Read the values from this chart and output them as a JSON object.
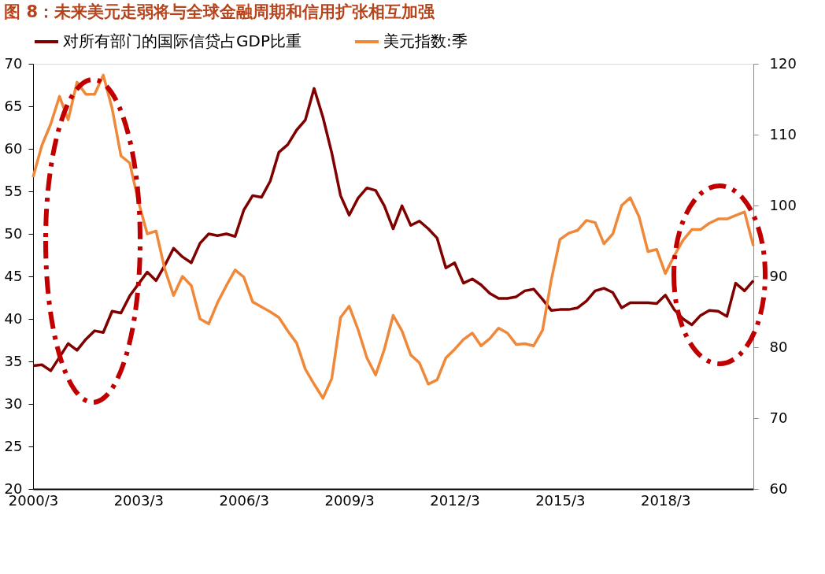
{
  "chart_data": {
    "type": "line",
    "title": "图 8：未来美元走弱将与全球金融周期和信用扩张相互加强",
    "x": [
      "2000-03",
      "2000-06",
      "2000-09",
      "2000-12",
      "2001-03",
      "2001-06",
      "2001-09",
      "2001-12",
      "2002-03",
      "2002-06",
      "2002-09",
      "2002-12",
      "2003-03",
      "2003-06",
      "2003-09",
      "2003-12",
      "2004-03",
      "2004-06",
      "2004-09",
      "2004-12",
      "2005-03",
      "2005-06",
      "2005-09",
      "2005-12",
      "2006-03",
      "2006-06",
      "2006-09",
      "2006-12",
      "2007-03",
      "2007-06",
      "2007-09",
      "2007-12",
      "2008-03",
      "2008-06",
      "2008-09",
      "2008-12",
      "2009-03",
      "2009-06",
      "2009-09",
      "2009-12",
      "2010-03",
      "2010-06",
      "2010-09",
      "2010-12",
      "2011-03",
      "2011-06",
      "2011-09",
      "2011-12",
      "2012-03",
      "2012-06",
      "2012-09",
      "2012-12",
      "2013-03",
      "2013-06",
      "2013-09",
      "2013-12",
      "2014-03",
      "2014-06",
      "2014-09",
      "2014-12",
      "2015-03",
      "2015-06",
      "2015-09",
      "2015-12",
      "2016-03",
      "2016-06",
      "2016-09",
      "2016-12",
      "2017-03",
      "2017-06",
      "2017-09",
      "2017-12",
      "2018-03",
      "2018-06",
      "2018-09",
      "2018-12",
      "2019-03",
      "2019-06",
      "2019-09",
      "2019-12",
      "2020-03",
      "2020-06",
      "2020-09"
    ],
    "xlim": [
      "2000-03",
      "2020-09"
    ],
    "xticks": [
      {
        "value": "2000-03",
        "label": "2000/3"
      },
      {
        "value": "2003-03",
        "label": "2003/3"
      },
      {
        "value": "2006-03",
        "label": "2006/3"
      },
      {
        "value": "2009-03",
        "label": "2009/3"
      },
      {
        "value": "2012-03",
        "label": "2012/3"
      },
      {
        "value": "2015-03",
        "label": "2015/3"
      },
      {
        "value": "2018-03",
        "label": "2018/3"
      }
    ],
    "ylim": [
      20,
      70
    ],
    "yticks": [
      20,
      25,
      30,
      35,
      40,
      45,
      50,
      55,
      60,
      65,
      70
    ],
    "y2lim": [
      60,
      120
    ],
    "y2ticks": [
      60,
      70,
      80,
      90,
      100,
      110,
      120
    ],
    "legend": "top",
    "grid": false,
    "line_style": "solid",
    "series": [
      {
        "name": "对所有部门的国际信贷占GDP比重",
        "color": "#800000",
        "axis": "y",
        "values": [
          34.5,
          34.6,
          33.9,
          35.5,
          37.1,
          36.3,
          37.6,
          38.6,
          38.4,
          40.9,
          40.7,
          42.7,
          44.1,
          45.5,
          44.5,
          46.3,
          48.3,
          47.3,
          46.6,
          48.9,
          50.0,
          49.8,
          50.0,
          49.7,
          52.8,
          54.5,
          54.3,
          56.2,
          59.6,
          60.5,
          62.2,
          63.4,
          67.1,
          63.7,
          59.5,
          54.5,
          52.2,
          54.2,
          55.4,
          55.1,
          53.3,
          50.6,
          53.3,
          51.0,
          51.5,
          50.6,
          49.5,
          46.0,
          46.6,
          44.2,
          44.7,
          44.0,
          43.0,
          42.4,
          42.4,
          42.6,
          43.3,
          43.5,
          42.3,
          41.0,
          41.1,
          41.1,
          41.3,
          42.1,
          43.3,
          43.6,
          43.1,
          41.3,
          41.9,
          41.9,
          41.9,
          41.8,
          42.8,
          41.1,
          40.0,
          39.3,
          40.4,
          41.0,
          40.9,
          40.3,
          44.2,
          43.3,
          44.5
        ]
      },
      {
        "name": "美元指数:季",
        "color": "#f0883a",
        "axis": "y2",
        "values": [
          104.0,
          108.5,
          111.5,
          115.4,
          112.1,
          117.4,
          115.7,
          115.7,
          118.4,
          113.7,
          107.0,
          106.0,
          100.6,
          96.0,
          96.4,
          91.0,
          87.3,
          90.0,
          88.7,
          84.0,
          83.3,
          86.3,
          88.7,
          90.9,
          89.9,
          86.4,
          85.7,
          85.0,
          84.2,
          82.3,
          80.6,
          76.9,
          74.8,
          72.8,
          75.6,
          84.2,
          85.8,
          82.5,
          78.5,
          76.1,
          79.7,
          84.5,
          82.3,
          78.9,
          77.8,
          74.8,
          75.4,
          78.5,
          79.7,
          81.1,
          82.0,
          80.2,
          81.2,
          82.7,
          82.0,
          80.4,
          80.5,
          80.2,
          82.4,
          89.5,
          95.2,
          96.1,
          96.5,
          97.9,
          97.6,
          94.6,
          96.0,
          100.0,
          101.1,
          98.4,
          93.5,
          93.8,
          90.4,
          92.9,
          95.1,
          96.6,
          96.6,
          97.5,
          98.1,
          98.1,
          98.6,
          99.1,
          94.3
        ]
      }
    ]
  }
}
